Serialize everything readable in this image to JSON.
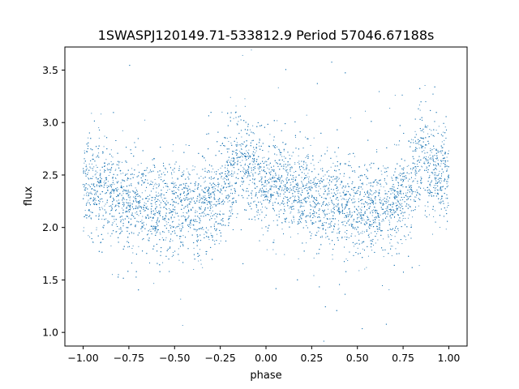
{
  "chart_data": {
    "type": "scatter",
    "title": "1SWASPJ120149.71-533812.9 Period 57046.67188s",
    "xlabel": "phase",
    "ylabel": "flux",
    "xlim": [
      -1.1,
      1.1
    ],
    "ylim": [
      0.87,
      3.72
    ],
    "xticks": [
      -1.0,
      -0.75,
      -0.5,
      -0.25,
      0.0,
      0.25,
      0.5,
      0.75,
      1.0
    ],
    "xtick_labels": [
      "−1.00",
      "−0.75",
      "−0.50",
      "−0.25",
      "0.00",
      "0.25",
      "0.50",
      "0.75",
      "1.00"
    ],
    "yticks": [
      1.0,
      1.5,
      2.0,
      2.5,
      3.0,
      3.5
    ],
    "ytick_labels": [
      "1.0",
      "1.5",
      "2.0",
      "2.5",
      "3.0",
      "3.5"
    ],
    "grid": false,
    "legend": "none",
    "point_color": "#1f77b4",
    "series": [
      {
        "x": [
          -1.0,
          -0.95,
          -0.9,
          -0.85,
          -0.8,
          -0.75,
          -0.7,
          -0.65,
          -0.6,
          -0.55,
          -0.5,
          -0.45,
          -0.4,
          -0.35,
          -0.3,
          -0.25,
          -0.2,
          -0.175,
          -0.15,
          -0.125,
          -0.1,
          -0.05,
          0.0,
          0.05,
          0.1,
          0.15,
          0.2,
          0.25,
          0.3,
          0.35,
          0.4,
          0.45,
          0.5,
          0.55,
          0.6,
          0.65,
          0.7,
          0.75,
          0.8,
          0.825,
          0.85,
          0.875,
          0.9,
          0.95,
          1.0
        ],
        "y": [
          2.4,
          2.37,
          2.33,
          2.3,
          2.27,
          2.25,
          2.23,
          2.22,
          2.2,
          2.2,
          2.19,
          2.19,
          2.18,
          2.18,
          2.2,
          2.3,
          2.48,
          2.58,
          2.65,
          2.62,
          2.56,
          2.5,
          2.45,
          2.41,
          2.38,
          2.35,
          2.31,
          2.28,
          2.26,
          2.24,
          2.22,
          2.21,
          2.2,
          2.19,
          2.18,
          2.18,
          2.2,
          2.3,
          2.48,
          2.58,
          2.65,
          2.62,
          2.56,
          2.5,
          2.45
        ],
        "scatter_width": 0.22
      }
    ]
  }
}
